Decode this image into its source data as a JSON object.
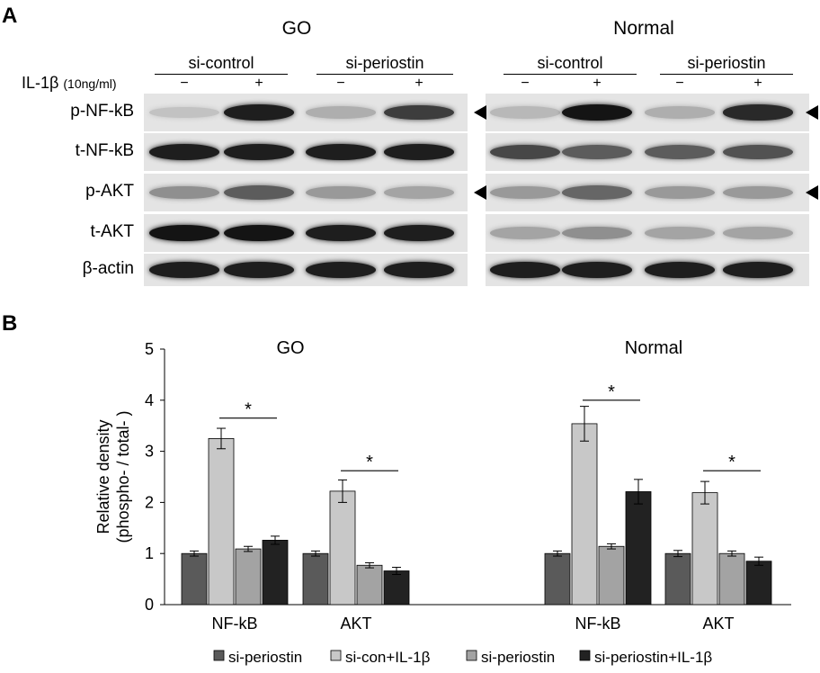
{
  "panelA": {
    "letter": "A",
    "groups": [
      {
        "title": "GO",
        "conditions": [
          "si-control",
          "si-periostin"
        ]
      },
      {
        "title": "Normal",
        "conditions": [
          "si-control",
          "si-periostin"
        ]
      }
    ],
    "treatment": {
      "label": "IL-1β",
      "unit": "(10ng/ml)",
      "signs": [
        "−",
        "+",
        "−",
        "+"
      ]
    },
    "rows": [
      {
        "label": "p-NF-kB",
        "arrow": true,
        "go": [
          0.15,
          0.95,
          0.25,
          0.8
        ],
        "normal": [
          0.2,
          1.0,
          0.25,
          0.9
        ]
      },
      {
        "label": "t-NF-kB",
        "arrow": false,
        "go": [
          0.95,
          0.95,
          0.95,
          0.95
        ],
        "normal": [
          0.75,
          0.65,
          0.65,
          0.7
        ]
      },
      {
        "label": "p-AKT",
        "arrow": true,
        "go": [
          0.4,
          0.65,
          0.35,
          0.3
        ],
        "normal": [
          0.35,
          0.6,
          0.35,
          0.35
        ]
      },
      {
        "label": "t-AKT",
        "arrow": false,
        "go": [
          1.0,
          1.0,
          0.95,
          0.95
        ],
        "normal": [
          0.3,
          0.4,
          0.3,
          0.3
        ]
      },
      {
        "label": "β-actin",
        "arrow": false,
        "go": [
          0.95,
          0.95,
          0.95,
          0.95
        ],
        "normal": [
          0.95,
          0.95,
          0.95,
          0.95
        ]
      }
    ]
  },
  "panelB": {
    "letter": "B",
    "chart_data": {
      "type": "bar",
      "ylabel_line1": "Relative density",
      "ylabel_line2": "(phospho- / total- )",
      "ylim": [
        0,
        5
      ],
      "yticks": [
        "0",
        "1",
        "2",
        "3",
        "4",
        "5"
      ],
      "grid": false,
      "legend_position": "bottom",
      "groups": [
        {
          "title": "GO",
          "categories": [
            "NF-kB",
            "AKT"
          ]
        },
        {
          "title": "Normal",
          "categories": [
            "NF-kB",
            "AKT"
          ]
        }
      ],
      "categories": [
        "GO NF-kB",
        "GO AKT",
        "Normal NF-kB",
        "Normal AKT"
      ],
      "category_labels": [
        "NF-kB",
        "AKT",
        "NF-kB",
        "AKT"
      ],
      "series": [
        {
          "name": "si-periostin",
          "color": "#5a5a5a",
          "values": [
            1.0,
            1.0,
            1.0,
            1.0
          ],
          "errors": [
            0.05,
            0.05,
            0.05,
            0.06
          ]
        },
        {
          "name": "si-con+IL-1β",
          "color": "#c8c8c8",
          "values": [
            3.25,
            2.22,
            3.54,
            2.19
          ],
          "errors": [
            0.2,
            0.22,
            0.34,
            0.22
          ]
        },
        {
          "name": "si-periostin",
          "color": "#a3a3a3",
          "values": [
            1.09,
            0.77,
            1.14,
            1.0
          ],
          "errors": [
            0.05,
            0.05,
            0.05,
            0.05
          ]
        },
        {
          "name": "si-periostin+IL-1β",
          "color": "#222222",
          "values": [
            1.26,
            0.66,
            2.21,
            0.85
          ],
          "errors": [
            0.08,
            0.07,
            0.24,
            0.08
          ]
        }
      ],
      "significance": [
        {
          "group": 0,
          "label": "*",
          "level": 3.65
        },
        {
          "group": 1,
          "label": "*",
          "level": 2.62
        },
        {
          "group": 2,
          "label": "*",
          "level": 4.0
        },
        {
          "group": 3,
          "label": "*",
          "level": 2.62
        }
      ]
    }
  }
}
